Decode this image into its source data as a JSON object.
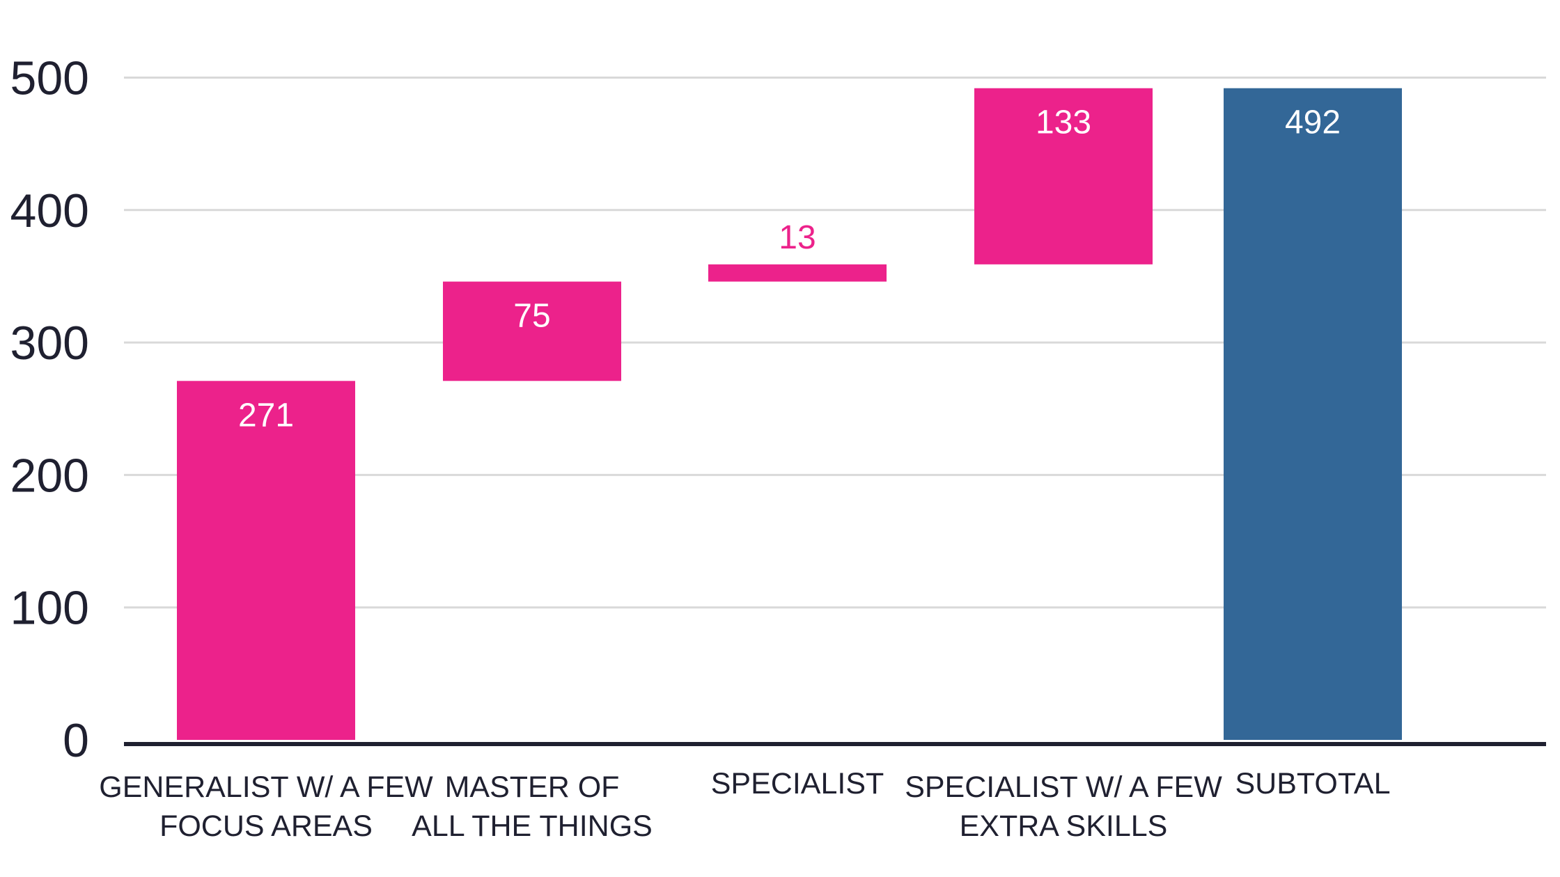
{
  "chart_data": {
    "type": "bar",
    "subtype": "waterfall",
    "categories": [
      [
        "GENERALIST W/ A FEW",
        "FOCUS AREAS"
      ],
      [
        "MASTER OF",
        "ALL THE THINGS"
      ],
      [
        "SPECIALIST"
      ],
      [
        "SPECIALIST W/ A FEW",
        "EXTRA SKILLS"
      ],
      [
        "SUBTOTAL"
      ]
    ],
    "values": [
      271,
      75,
      13,
      133,
      492
    ],
    "kinds": [
      "increase",
      "increase",
      "increase",
      "increase",
      "total"
    ],
    "data_labels": [
      "271",
      "75",
      "13",
      "133",
      "492"
    ],
    "y_ticks": [
      "0",
      "100",
      "200",
      "300",
      "400",
      "500"
    ],
    "ylim": [
      0,
      500
    ],
    "grid": true,
    "legend": "none",
    "colors": {
      "increase": "#ec228b",
      "total": "#336797",
      "grid": "#d9d9d9",
      "axis": "#1f2030",
      "label_inside": "#ffffff",
      "label_outside": "#ec228b"
    }
  }
}
